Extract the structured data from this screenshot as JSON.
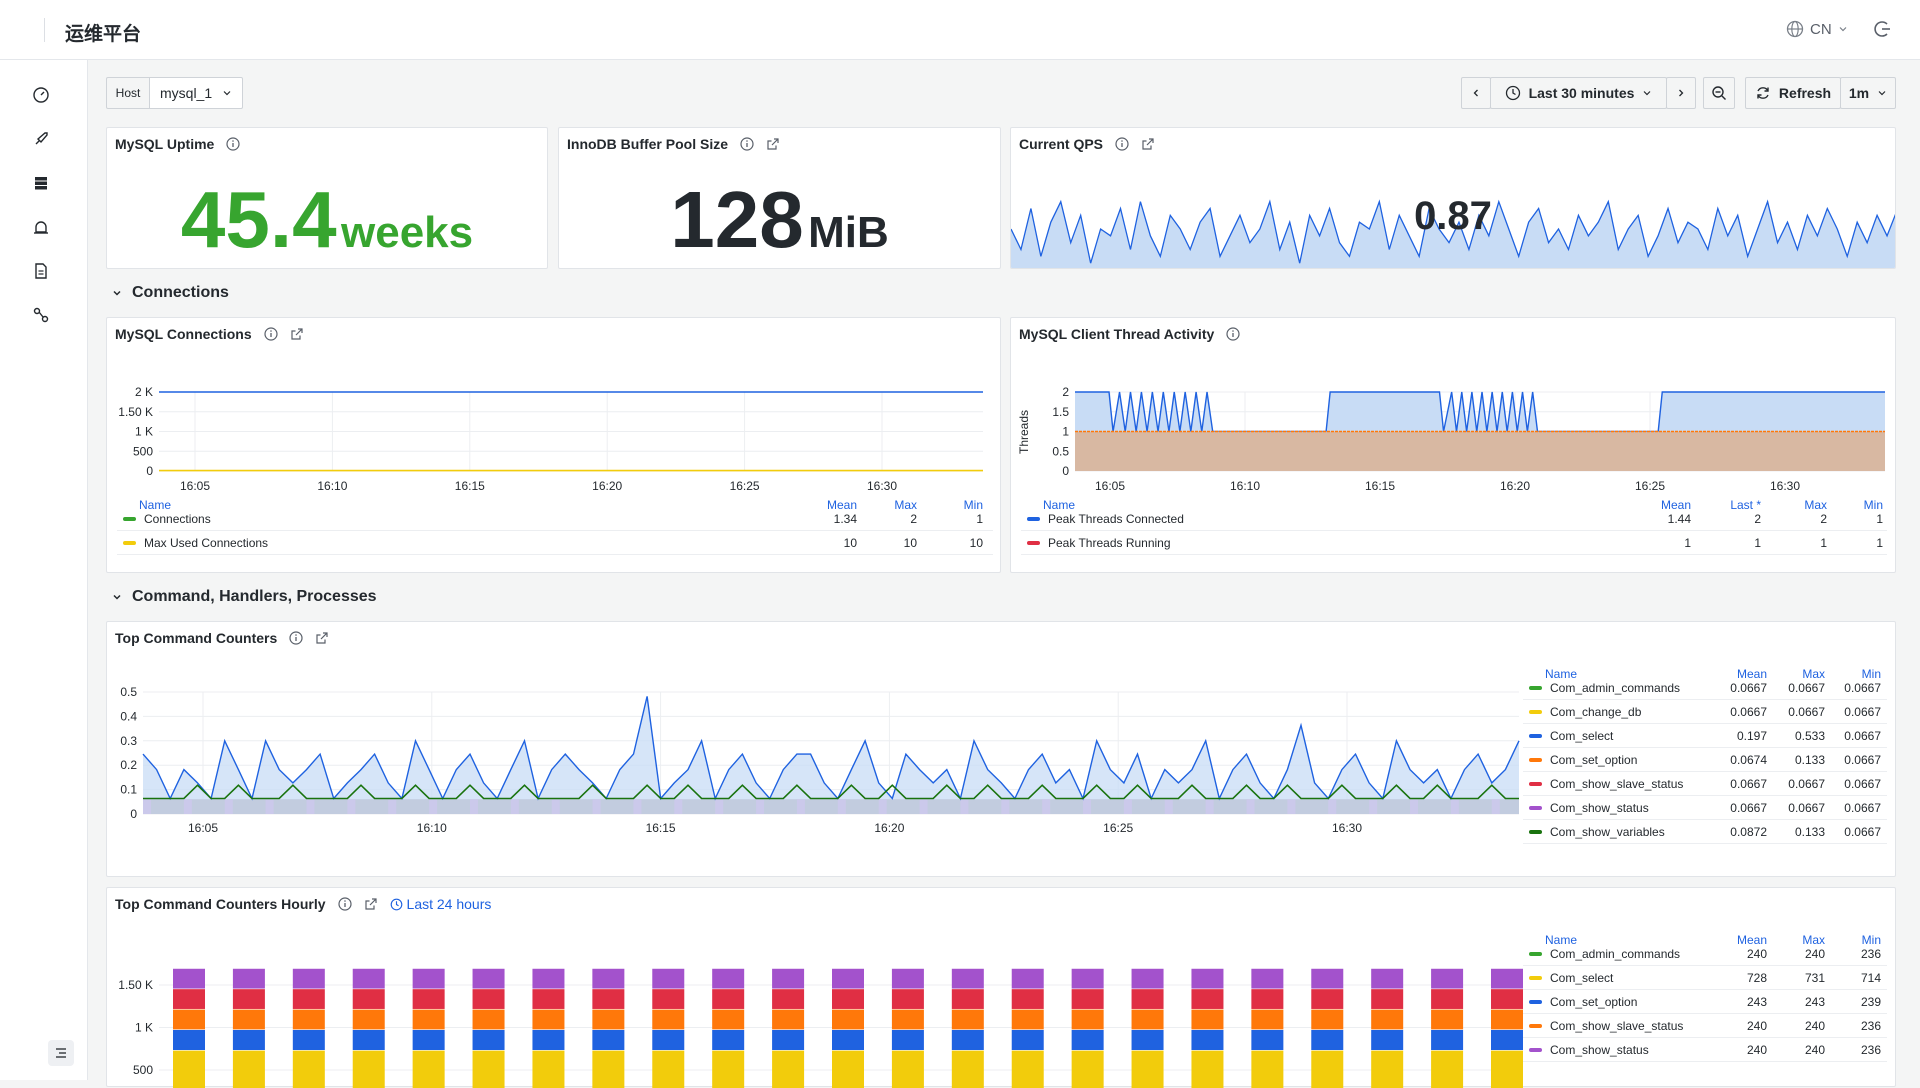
{
  "app": {
    "title": "运维平台",
    "lang": "CN",
    "icons": [
      "dashboard-icon",
      "rocket-icon",
      "database-icon",
      "alarm-icon",
      "document-icon",
      "workflow-icon"
    ]
  },
  "toolbar": {
    "host_label": "Host",
    "host_value": "mysql_1",
    "time_range": "Last 30 minutes",
    "refresh_label": "Refresh",
    "refresh_interval": "1m"
  },
  "stats": {
    "uptime": {
      "title": "MySQL Uptime",
      "value": "45.4",
      "unit": "weeks",
      "color": "#37a52f"
    },
    "buffer": {
      "title": "InnoDB Buffer Pool Size",
      "value": "128",
      "unit": "MiB"
    },
    "qps": {
      "title": "Current QPS",
      "value": "0.87"
    }
  },
  "sections": {
    "connections": "Connections",
    "commands": "Command, Handlers, Processes"
  },
  "charts": {
    "connections": {
      "title": "MySQL Connections"
    },
    "threads": {
      "title": "MySQL Client Thread Activity",
      "ylabel": "Threads"
    },
    "top": {
      "title": "Top Command Counters"
    },
    "hourly": {
      "title": "Top Command Counters Hourly",
      "range_badge": "Last 24 hours"
    }
  },
  "chart_data": [
    {
      "type": "area",
      "name": "qps_sparkline",
      "y": [
        0.6,
        0.3,
        0.9,
        0.2,
        0.7,
        1.0,
        0.4,
        0.8,
        0.1,
        0.6,
        0.5,
        0.9,
        0.3,
        1.0,
        0.5,
        0.2,
        0.8,
        0.6,
        0.3,
        0.7,
        0.9,
        0.2,
        0.5,
        0.8,
        0.4,
        0.6,
        1.0,
        0.3,
        0.7,
        0.1,
        0.8,
        0.5,
        0.9,
        0.4,
        0.2,
        0.7,
        0.6,
        1.0,
        0.3,
        0.8,
        0.5,
        0.2,
        0.9,
        0.6,
        0.4,
        0.7,
        0.3,
        0.8,
        0.5,
        1.0,
        0.6,
        0.2,
        0.7,
        0.9,
        0.4,
        0.6,
        0.3,
        0.8,
        0.5,
        0.7,
        1.0,
        0.3,
        0.6,
        0.8,
        0.2,
        0.5,
        0.9,
        0.4,
        0.7,
        0.6,
        0.3,
        0.9,
        0.5,
        0.8,
        0.2,
        0.6,
        1.0,
        0.4,
        0.7,
        0.3,
        0.8,
        0.5,
        0.9,
        0.6,
        0.2,
        0.7,
        0.4,
        0.8,
        0.5,
        0.87
      ],
      "ylim": [
        0,
        1.2
      ]
    },
    {
      "type": "line",
      "name": "mysql_connections",
      "x_ticks": [
        "16:05",
        "16:10",
        "16:15",
        "16:20",
        "16:25",
        "16:30"
      ],
      "y_ticks": [
        "2 K",
        "1.50 K",
        "1 K",
        "500",
        "0"
      ],
      "ylim": [
        0,
        2000
      ],
      "series": [
        {
          "name": "Connections",
          "color": "#37a52f",
          "mean": "1.34",
          "max": "2",
          "min": "1",
          "y": 2000,
          "line_color": "#1f62e0"
        },
        {
          "name": "Max Used Connections",
          "color": "#f2cc0c",
          "mean": "10",
          "max": "10",
          "min": "10",
          "y": 10,
          "line_color": "#f2cc0c"
        }
      ],
      "columns": [
        "Name",
        "Mean",
        "Max",
        "Min"
      ]
    },
    {
      "type": "area",
      "name": "client_thread_activity",
      "x_ticks": [
        "16:05",
        "16:10",
        "16:15",
        "16:20",
        "16:25",
        "16:30"
      ],
      "y_ticks": [
        "2",
        "1.5",
        "1",
        "0.5",
        "0"
      ],
      "ylim": [
        0,
        2
      ],
      "ylabel": "Threads",
      "columns": [
        "Name",
        "Mean",
        "Last *",
        "Max",
        "Min"
      ],
      "series": [
        {
          "name": "Peak Threads Connected",
          "color": "#1f62e0",
          "mean": "1.44",
          "last": "2",
          "max": "2",
          "min": "1"
        },
        {
          "name": "Peak Threads Running",
          "color": "#e02f44",
          "mean": "1",
          "last": "1",
          "max": "1",
          "min": "1"
        }
      ]
    },
    {
      "type": "line",
      "name": "top_command_counters",
      "x_ticks": [
        "16:05",
        "16:10",
        "16:15",
        "16:20",
        "16:25",
        "16:30"
      ],
      "y_ticks": [
        "0.5",
        "0.4",
        "0.3",
        "0.2",
        "0.1",
        "0"
      ],
      "ylim": [
        0,
        0.55
      ],
      "columns": [
        "Name",
        "Mean",
        "Max",
        "Min"
      ],
      "series": [
        {
          "name": "Com_admin_commands",
          "color": "#37a52f",
          "mean": "0.0667",
          "max": "0.0667",
          "min": "0.0667"
        },
        {
          "name": "Com_change_db",
          "color": "#f2cc0c",
          "mean": "0.0667",
          "max": "0.0667",
          "min": "0.0667"
        },
        {
          "name": "Com_select",
          "color": "#1f62e0",
          "mean": "0.197",
          "max": "0.533",
          "min": "0.0667"
        },
        {
          "name": "Com_set_option",
          "color": "#ff780a",
          "mean": "0.0674",
          "max": "0.133",
          "min": "0.0667"
        },
        {
          "name": "Com_show_slave_status",
          "color": "#e02f44",
          "mean": "0.0667",
          "max": "0.0667",
          "min": "0.0667"
        },
        {
          "name": "Com_show_status",
          "color": "#a352cc",
          "mean": "0.0667",
          "max": "0.0667",
          "min": "0.0667"
        },
        {
          "name": "Com_show_variables",
          "color": "#19730e",
          "mean": "0.0872",
          "max": "0.133",
          "min": "0.0667"
        }
      ],
      "select_y": [
        0.27,
        0.2,
        0.07,
        0.2,
        0.14,
        0.07,
        0.33,
        0.2,
        0.07,
        0.33,
        0.2,
        0.14,
        0.2,
        0.27,
        0.07,
        0.14,
        0.2,
        0.27,
        0.14,
        0.07,
        0.33,
        0.2,
        0.07,
        0.2,
        0.27,
        0.14,
        0.07,
        0.2,
        0.33,
        0.07,
        0.2,
        0.27,
        0.2,
        0.14,
        0.07,
        0.2,
        0.27,
        0.53,
        0.07,
        0.14,
        0.2,
        0.33,
        0.07,
        0.2,
        0.27,
        0.14,
        0.07,
        0.2,
        0.27,
        0.27,
        0.14,
        0.07,
        0.2,
        0.33,
        0.14,
        0.07,
        0.27,
        0.2,
        0.14,
        0.2,
        0.07,
        0.33,
        0.2,
        0.14,
        0.07,
        0.2,
        0.27,
        0.14,
        0.2,
        0.07,
        0.33,
        0.2,
        0.14,
        0.27,
        0.07,
        0.2,
        0.14,
        0.2,
        0.33,
        0.07,
        0.2,
        0.27,
        0.14,
        0.07,
        0.2,
        0.4,
        0.14,
        0.07,
        0.2,
        0.27,
        0.14,
        0.07,
        0.33,
        0.2,
        0.14,
        0.2,
        0.07,
        0.2,
        0.27,
        0.14,
        0.2,
        0.33
      ],
      "variables_y": [
        0.07,
        0.07,
        0.07,
        0.07,
        0.13,
        0.07,
        0.07,
        0.13,
        0.07,
        0.07,
        0.07,
        0.13,
        0.07,
        0.07,
        0.07,
        0.07,
        0.13,
        0.07,
        0.07,
        0.07,
        0.13,
        0.07,
        0.07,
        0.07,
        0.13,
        0.07,
        0.07,
        0.07,
        0.13,
        0.07,
        0.07,
        0.07,
        0.07,
        0.13,
        0.07,
        0.07,
        0.07,
        0.13,
        0.07,
        0.07,
        0.13,
        0.07,
        0.07,
        0.07,
        0.13,
        0.07,
        0.07,
        0.07,
        0.13,
        0.07,
        0.07,
        0.07,
        0.13,
        0.07,
        0.07,
        0.13,
        0.07,
        0.07,
        0.07,
        0.13,
        0.07,
        0.07,
        0.13,
        0.07,
        0.07,
        0.07,
        0.13,
        0.07,
        0.07,
        0.07,
        0.13,
        0.07,
        0.07,
        0.13,
        0.07,
        0.07,
        0.07,
        0.13,
        0.07,
        0.07,
        0.07,
        0.13,
        0.07,
        0.07,
        0.13,
        0.07,
        0.07,
        0.07,
        0.13,
        0.07,
        0.07,
        0.07,
        0.13,
        0.07,
        0.07,
        0.13,
        0.07,
        0.07,
        0.07,
        0.13,
        0.07,
        0.07
      ]
    },
    {
      "type": "bar",
      "name": "top_command_counters_hourly",
      "y_ticks": [
        "1.50 K",
        "1 K",
        "500"
      ],
      "ylim": [
        0,
        1800
      ],
      "columns": [
        "Name",
        "Mean",
        "Max",
        "Min"
      ],
      "bar_stack": [
        {
          "name": "Com_select",
          "value": 728,
          "color": "#f2cc0c"
        },
        {
          "name": "Com_set_option",
          "value": 243,
          "color": "#1f62e0"
        },
        {
          "name": "Com_show_slave_status",
          "value": 240,
          "color": "#ff780a"
        },
        {
          "name": "Com_show_status",
          "value": 240,
          "color": "#e02f44"
        },
        {
          "name": "Com_admin_commands",
          "value": 240,
          "color": "#a352cc"
        }
      ],
      "bar_count": 23,
      "series": [
        {
          "name": "Com_admin_commands",
          "color": "#37a52f",
          "mean": "240",
          "max": "240",
          "min": "236"
        },
        {
          "name": "Com_select",
          "color": "#f2cc0c",
          "mean": "728",
          "max": "731",
          "min": "714"
        },
        {
          "name": "Com_set_option",
          "color": "#1f62e0",
          "mean": "243",
          "max": "243",
          "min": "239"
        },
        {
          "name": "Com_show_slave_status",
          "color": "#ff780a",
          "mean": "240",
          "max": "240",
          "min": "236"
        },
        {
          "name": "Com_show_status",
          "color": "#a352cc",
          "mean": "240",
          "max": "240",
          "min": "236"
        }
      ]
    }
  ]
}
